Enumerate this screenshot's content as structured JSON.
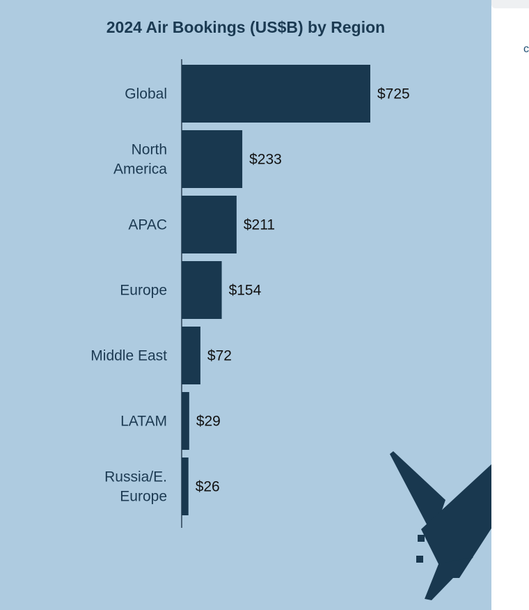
{
  "chart_data": {
    "type": "bar",
    "orientation": "horizontal",
    "title": "2024 Air Bookings (US$B) by Region",
    "xlabel": "",
    "ylabel": "",
    "categories": [
      "Global",
      "North America",
      "APAC",
      "Europe",
      "Middle East",
      "LATAM",
      "Russia/E. Europe"
    ],
    "category_lines": [
      [
        "Global"
      ],
      [
        "North",
        "America"
      ],
      [
        "APAC"
      ],
      [
        "Europe"
      ],
      [
        "Middle East"
      ],
      [
        "LATAM"
      ],
      [
        "Russia/E.",
        "Europe"
      ]
    ],
    "values": [
      725,
      233,
      211,
      154,
      72,
      29,
      26
    ],
    "value_labels": [
      "$725",
      "$233",
      "$211",
      "$154",
      "$72",
      "$29",
      "$26"
    ],
    "xlim": [
      0,
      725
    ],
    "grid": false,
    "legend": "none",
    "colors": {
      "bar": "#19384f",
      "panel_background": "#aecbe0",
      "title": "#1b3a52",
      "category_text": "#1c3a52",
      "value_text": "#111111"
    }
  },
  "decorations": {
    "icon": "airplane-icon",
    "right_edge_glyph": "c"
  }
}
